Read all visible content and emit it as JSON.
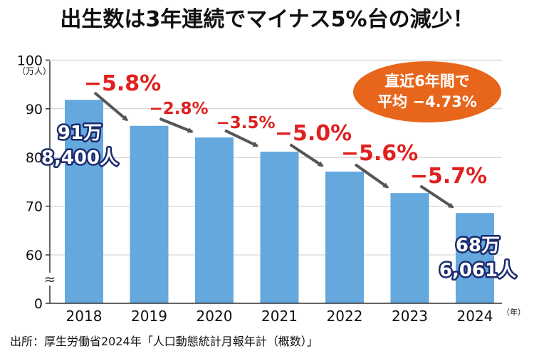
{
  "title": "出生数は3年連続でマイナス5%台の減少！",
  "source": "出所：厚生労働省2024年「人口動態統計月報年計（概数）」",
  "badge": {
    "line1": "直近6年間で",
    "line2": "平均 −4.73%"
  },
  "colors": {
    "bar": "#64a8de",
    "change": "#e0201f",
    "badge": "#e8661b",
    "callout_text": "#ffffff",
    "callout_stroke": "#1a2a6e",
    "arrow": "#555555"
  },
  "chart_data": {
    "type": "bar",
    "title": "出生数は3年連続でマイナス5%台の減少！",
    "categories": [
      "2018",
      "2019",
      "2020",
      "2021",
      "2022",
      "2023",
      "2024"
    ],
    "values": [
      91.84,
      86.5,
      84.1,
      81.2,
      77.1,
      72.7,
      68.6061
    ],
    "ylabel_unit": "（万人）",
    "xlabel_unit": "（年）",
    "ylim": [
      0,
      100
    ],
    "y_ticks": [
      "0",
      "60",
      "70",
      "80",
      "90",
      "100"
    ],
    "axis_break": "≈",
    "changes": [
      "−5.8%",
      "−2.8%",
      "−3.5%",
      "−5.0%",
      "−5.6%",
      "−5.7%"
    ],
    "callouts": [
      {
        "category": "2018",
        "line1": "91万",
        "line2": "8,400人"
      },
      {
        "category": "2024",
        "line1": "68万",
        "line2": "6,061人"
      }
    ]
  }
}
